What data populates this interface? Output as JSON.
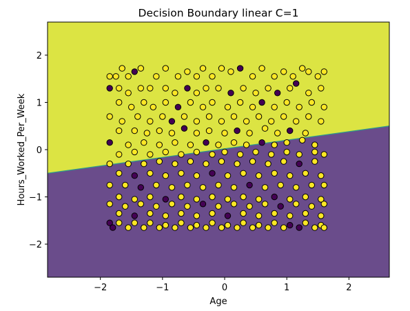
{
  "chart_data": {
    "type": "scatter",
    "title": "Decision Boundary linear C=1",
    "xlabel": "Age",
    "ylabel": "Hours_Worked_Per_Week",
    "xlim": [
      -2.85,
      2.65
    ],
    "ylim": [
      -2.7,
      2.7
    ],
    "xticks": [
      -2,
      -1,
      0,
      1,
      2
    ],
    "yticks": [
      -2,
      -1,
      0,
      1,
      2
    ],
    "xtick_labels": [
      "−2",
      "−1",
      "0",
      "1",
      "2"
    ],
    "ytick_labels": [
      "−2",
      "−1",
      "0",
      "1",
      "2"
    ],
    "boundary_line": {
      "x": [
        -2.85,
        2.65
      ],
      "y": [
        -0.5,
        0.5
      ]
    },
    "regions": [
      {
        "name": "above boundary",
        "color": "#dce443"
      },
      {
        "name": "below boundary",
        "color": "#6a4c8b"
      }
    ],
    "point_colors": {
      "class_1": "#fde725",
      "class_0": "#440154",
      "edge": "#000000"
    },
    "grid": false,
    "points": [
      [
        -1.85,
        1.55,
        1
      ],
      [
        -1.75,
        1.55,
        1
      ],
      [
        -1.65,
        1.72,
        1
      ],
      [
        -1.55,
        1.55,
        1
      ],
      [
        -1.45,
        1.65,
        0
      ],
      [
        -1.35,
        1.72,
        1
      ],
      [
        -1.1,
        1.55,
        1
      ],
      [
        -0.95,
        1.72,
        1
      ],
      [
        -0.75,
        1.55,
        1
      ],
      [
        -0.6,
        1.65,
        1
      ],
      [
        -0.45,
        1.55,
        1
      ],
      [
        -0.35,
        1.72,
        1
      ],
      [
        -0.2,
        1.55,
        1
      ],
      [
        -0.05,
        1.72,
        1
      ],
      [
        0.1,
        1.65,
        1
      ],
      [
        0.25,
        1.72,
        0
      ],
      [
        0.45,
        1.55,
        1
      ],
      [
        0.6,
        1.72,
        1
      ],
      [
        0.8,
        1.55,
        1
      ],
      [
        0.95,
        1.65,
        1
      ],
      [
        1.1,
        1.55,
        1
      ],
      [
        1.25,
        1.72,
        1
      ],
      [
        1.35,
        1.65,
        1
      ],
      [
        1.5,
        1.55,
        1
      ],
      [
        1.6,
        1.65,
        1
      ],
      [
        -1.85,
        1.3,
        0
      ],
      [
        -1.7,
        1.3,
        1
      ],
      [
        -1.55,
        1.2,
        1
      ],
      [
        -1.35,
        1.3,
        1
      ],
      [
        -1.2,
        1.3,
        1
      ],
      [
        -0.95,
        1.3,
        1
      ],
      [
        -0.8,
        1.2,
        1
      ],
      [
        -0.6,
        1.3,
        0
      ],
      [
        -0.45,
        1.2,
        1
      ],
      [
        -0.3,
        1.3,
        1
      ],
      [
        -0.1,
        1.3,
        1
      ],
      [
        0.1,
        1.2,
        0
      ],
      [
        0.3,
        1.3,
        1
      ],
      [
        0.5,
        1.2,
        1
      ],
      [
        0.7,
        1.3,
        1
      ],
      [
        0.85,
        1.2,
        0
      ],
      [
        1.05,
        1.3,
        1
      ],
      [
        1.15,
        1.4,
        0
      ],
      [
        1.35,
        1.2,
        1
      ],
      [
        1.55,
        1.3,
        1
      ],
      [
        -1.7,
        1.0,
        1
      ],
      [
        -1.5,
        0.9,
        1
      ],
      [
        -1.3,
        1.0,
        1
      ],
      [
        -1.15,
        0.9,
        1
      ],
      [
        -0.95,
        1.0,
        1
      ],
      [
        -0.75,
        0.9,
        0
      ],
      [
        -0.55,
        1.0,
        1
      ],
      [
        -0.35,
        0.9,
        1
      ],
      [
        -0.2,
        1.0,
        1
      ],
      [
        0.05,
        0.9,
        1
      ],
      [
        0.25,
        1.0,
        1
      ],
      [
        0.45,
        0.9,
        1
      ],
      [
        0.6,
        1.0,
        0
      ],
      [
        0.8,
        0.9,
        1
      ],
      [
        1.0,
        1.0,
        1
      ],
      [
        1.2,
        0.9,
        1
      ],
      [
        1.4,
        1.0,
        1
      ],
      [
        1.6,
        0.9,
        1
      ],
      [
        -1.85,
        0.7,
        1
      ],
      [
        -1.65,
        0.6,
        1
      ],
      [
        -1.4,
        0.7,
        1
      ],
      [
        -1.2,
        0.6,
        1
      ],
      [
        -1.0,
        0.7,
        1
      ],
      [
        -0.85,
        0.6,
        0
      ],
      [
        -0.65,
        0.7,
        1
      ],
      [
        -0.45,
        0.6,
        1
      ],
      [
        -0.25,
        0.7,
        1
      ],
      [
        -0.05,
        0.6,
        1
      ],
      [
        0.15,
        0.7,
        1
      ],
      [
        0.35,
        0.6,
        1
      ],
      [
        0.55,
        0.7,
        1
      ],
      [
        0.75,
        0.6,
        1
      ],
      [
        0.95,
        0.7,
        1
      ],
      [
        1.15,
        0.6,
        1
      ],
      [
        1.35,
        0.7,
        1
      ],
      [
        1.55,
        0.6,
        1
      ],
      [
        -1.7,
        0.4,
        1
      ],
      [
        -1.45,
        0.4,
        1
      ],
      [
        -1.25,
        0.35,
        1
      ],
      [
        -1.05,
        0.4,
        1
      ],
      [
        -0.85,
        0.35,
        1
      ],
      [
        -0.65,
        0.45,
        0
      ],
      [
        -0.45,
        0.35,
        1
      ],
      [
        -0.25,
        0.4,
        1
      ],
      [
        0.0,
        0.35,
        1
      ],
      [
        0.2,
        0.4,
        0
      ],
      [
        0.4,
        0.35,
        1
      ],
      [
        0.65,
        0.45,
        1
      ],
      [
        0.85,
        0.35,
        1
      ],
      [
        1.05,
        0.4,
        0
      ],
      [
        1.3,
        0.35,
        1
      ],
      [
        -1.85,
        0.15,
        0
      ],
      [
        -1.55,
        0.1,
        1
      ],
      [
        -1.3,
        0.15,
        1
      ],
      [
        -1.05,
        0.1,
        1
      ],
      [
        -0.8,
        0.15,
        1
      ],
      [
        -0.55,
        0.1,
        1
      ],
      [
        -0.3,
        0.15,
        0
      ],
      [
        -0.1,
        0.1,
        1
      ],
      [
        0.15,
        0.15,
        1
      ],
      [
        0.35,
        0.1,
        1
      ],
      [
        0.6,
        0.15,
        0
      ],
      [
        0.8,
        0.1,
        1
      ],
      [
        1.0,
        0.15,
        1
      ],
      [
        1.25,
        0.2,
        1
      ],
      [
        1.45,
        0.1,
        1
      ],
      [
        -1.7,
        -0.1,
        1
      ],
      [
        -1.45,
        -0.05,
        1
      ],
      [
        -1.2,
        -0.1,
        1
      ],
      [
        -0.95,
        -0.05,
        1
      ],
      [
        -0.7,
        -0.1,
        1
      ],
      [
        -0.45,
        -0.05,
        1
      ],
      [
        -0.2,
        -0.1,
        1
      ],
      [
        0.0,
        -0.05,
        1
      ],
      [
        0.25,
        -0.1,
        1
      ],
      [
        0.5,
        -0.05,
        1
      ],
      [
        0.75,
        -0.1,
        1
      ],
      [
        1.0,
        -0.05,
        1
      ],
      [
        1.2,
        -0.1,
        1
      ],
      [
        1.45,
        -0.05,
        1
      ],
      [
        1.6,
        -0.1,
        1
      ],
      [
        -1.85,
        -0.3,
        1
      ],
      [
        -1.55,
        -0.3,
        1
      ],
      [
        -1.3,
        -0.3,
        1
      ],
      [
        -1.05,
        -0.25,
        1
      ],
      [
        -0.8,
        -0.3,
        1
      ],
      [
        -0.55,
        -0.25,
        1
      ],
      [
        -0.3,
        -0.3,
        1
      ],
      [
        -0.05,
        -0.25,
        1
      ],
      [
        0.2,
        -0.3,
        1
      ],
      [
        0.45,
        -0.25,
        1
      ],
      [
        0.7,
        -0.3,
        1
      ],
      [
        0.95,
        -0.25,
        1
      ],
      [
        1.2,
        -0.3,
        0
      ],
      [
        1.45,
        -0.25,
        1
      ],
      [
        -1.7,
        -0.5,
        1
      ],
      [
        -1.45,
        -0.55,
        0
      ],
      [
        -1.2,
        -0.5,
        1
      ],
      [
        -0.95,
        -0.55,
        1
      ],
      [
        -0.7,
        -0.5,
        1
      ],
      [
        -0.45,
        -0.55,
        1
      ],
      [
        -0.2,
        -0.5,
        0
      ],
      [
        0.05,
        -0.55,
        1
      ],
      [
        0.3,
        -0.5,
        1
      ],
      [
        0.55,
        -0.55,
        1
      ],
      [
        0.8,
        -0.5,
        1
      ],
      [
        1.05,
        -0.55,
        1
      ],
      [
        1.3,
        -0.5,
        1
      ],
      [
        1.55,
        -0.55,
        1
      ],
      [
        -1.85,
        -0.75,
        1
      ],
      [
        -1.6,
        -0.75,
        1
      ],
      [
        -1.35,
        -0.8,
        0
      ],
      [
        -1.1,
        -0.75,
        1
      ],
      [
        -0.85,
        -0.8,
        1
      ],
      [
        -0.6,
        -0.75,
        1
      ],
      [
        -0.35,
        -0.8,
        1
      ],
      [
        -0.1,
        -0.75,
        1
      ],
      [
        0.15,
        -0.8,
        1
      ],
      [
        0.4,
        -0.75,
        0
      ],
      [
        0.65,
        -0.8,
        1
      ],
      [
        0.9,
        -0.75,
        1
      ],
      [
        1.15,
        -0.8,
        1
      ],
      [
        1.4,
        -0.75,
        1
      ],
      [
        1.6,
        -0.75,
        1
      ],
      [
        -1.7,
        -1.0,
        1
      ],
      [
        -1.45,
        -1.05,
        1
      ],
      [
        -1.2,
        -1.0,
        1
      ],
      [
        -0.95,
        -1.05,
        0
      ],
      [
        -0.7,
        -1.0,
        1
      ],
      [
        -0.45,
        -1.05,
        1
      ],
      [
        -0.2,
        -1.0,
        1
      ],
      [
        0.05,
        -1.05,
        1
      ],
      [
        0.3,
        -1.0,
        1
      ],
      [
        0.55,
        -1.05,
        1
      ],
      [
        0.8,
        -1.0,
        0
      ],
      [
        1.05,
        -1.05,
        1
      ],
      [
        1.3,
        -1.0,
        1
      ],
      [
        1.55,
        -1.05,
        1
      ],
      [
        -1.85,
        -1.15,
        1
      ],
      [
        -1.6,
        -1.2,
        1
      ],
      [
        -1.35,
        -1.15,
        1
      ],
      [
        -1.1,
        -1.2,
        1
      ],
      [
        -0.85,
        -1.15,
        1
      ],
      [
        -0.6,
        -1.2,
        1
      ],
      [
        -0.35,
        -1.15,
        0
      ],
      [
        -0.1,
        -1.2,
        1
      ],
      [
        0.15,
        -1.15,
        1
      ],
      [
        0.4,
        -1.2,
        1
      ],
      [
        0.65,
        -1.15,
        1
      ],
      [
        0.9,
        -1.2,
        0
      ],
      [
        1.15,
        -1.15,
        1
      ],
      [
        1.4,
        -1.2,
        1
      ],
      [
        1.6,
        -1.15,
        1
      ],
      [
        -1.7,
        -1.35,
        1
      ],
      [
        -1.45,
        -1.4,
        0
      ],
      [
        -1.2,
        -1.35,
        1
      ],
      [
        -0.95,
        -1.4,
        1
      ],
      [
        -0.7,
        -1.35,
        1
      ],
      [
        -0.45,
        -1.4,
        1
      ],
      [
        -0.2,
        -1.35,
        1
      ],
      [
        0.05,
        -1.4,
        0
      ],
      [
        0.3,
        -1.35,
        1
      ],
      [
        0.55,
        -1.4,
        1
      ],
      [
        0.8,
        -1.35,
        1
      ],
      [
        1.05,
        -1.4,
        1
      ],
      [
        1.3,
        -1.35,
        1
      ],
      [
        1.55,
        -1.4,
        1
      ],
      [
        -1.85,
        -1.55,
        0
      ],
      [
        -1.7,
        -1.55,
        1
      ],
      [
        -1.45,
        -1.55,
        1
      ],
      [
        -1.2,
        -1.55,
        1
      ],
      [
        -0.95,
        -1.6,
        1
      ],
      [
        -0.7,
        -1.55,
        1
      ],
      [
        -0.45,
        -1.6,
        1
      ],
      [
        -0.2,
        -1.55,
        1
      ],
      [
        0.05,
        -1.6,
        1
      ],
      [
        0.3,
        -1.55,
        1
      ],
      [
        0.55,
        -1.6,
        1
      ],
      [
        0.8,
        -1.55,
        1
      ],
      [
        1.05,
        -1.6,
        0
      ],
      [
        1.3,
        -1.55,
        1
      ],
      [
        1.55,
        -1.6,
        1
      ],
      [
        -1.8,
        -1.65,
        0
      ],
      [
        -1.55,
        -1.65,
        1
      ],
      [
        -1.3,
        -1.65,
        1
      ],
      [
        -1.05,
        -1.65,
        1
      ],
      [
        -0.8,
        -1.65,
        1
      ],
      [
        -0.55,
        -1.65,
        1
      ],
      [
        -0.3,
        -1.65,
        1
      ],
      [
        -0.05,
        -1.65,
        1
      ],
      [
        0.2,
        -1.65,
        1
      ],
      [
        0.45,
        -1.65,
        1
      ],
      [
        0.7,
        -1.65,
        1
      ],
      [
        0.95,
        -1.65,
        1
      ],
      [
        1.2,
        -1.65,
        0
      ],
      [
        1.45,
        -1.65,
        1
      ],
      [
        1.6,
        -1.65,
        1
      ]
    ]
  }
}
